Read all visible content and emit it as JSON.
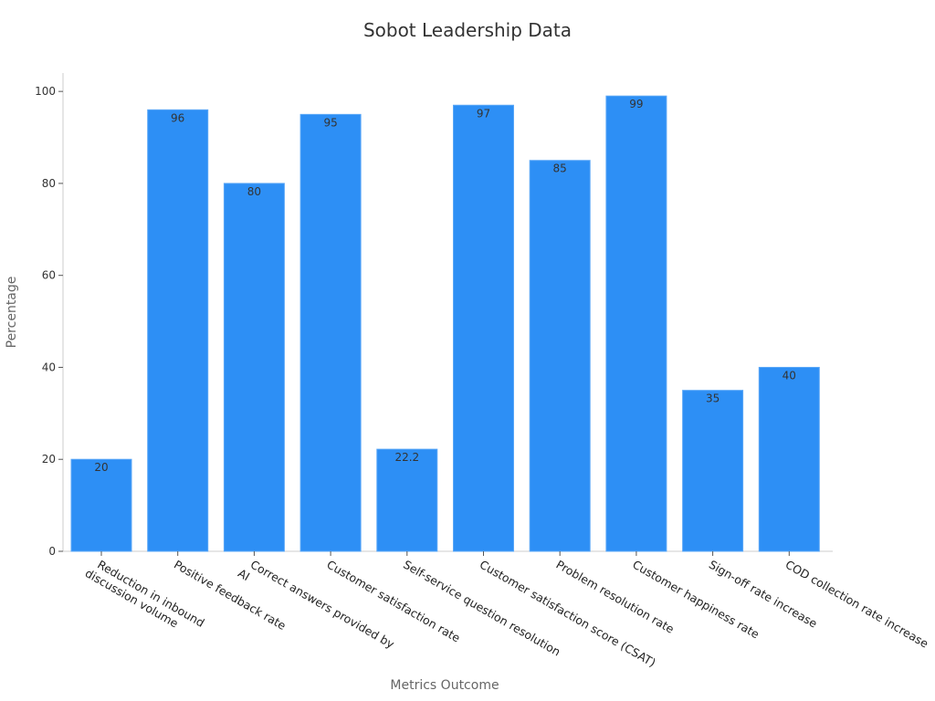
{
  "chart_data": {
    "type": "bar",
    "title": "Sobot Leadership Data",
    "xlabel": "Metrics Outcome",
    "ylabel": "Percentage",
    "ylim": [
      0,
      104
    ],
    "yticks": [
      0,
      20,
      40,
      60,
      80,
      100
    ],
    "grid": false,
    "bar_color": "#2d8ff5",
    "categories": [
      [
        "Reduction in inbound",
        "discussion volume"
      ],
      [
        "Positive feedback rate"
      ],
      [
        "Correct answers provided by",
        "AI"
      ],
      [
        "Customer satisfaction rate"
      ],
      [
        "Self-service question resolution"
      ],
      [
        "Customer satisfaction score (CSAT)"
      ],
      [
        "Problem resolution rate"
      ],
      [
        "Customer happiness rate"
      ],
      [
        "Sign-off rate increase"
      ],
      [
        "COD collection rate increase"
      ]
    ],
    "values": [
      20,
      96,
      80,
      95,
      22.2,
      97,
      85,
      99,
      35,
      40
    ],
    "value_labels": [
      "20",
      "96",
      "80",
      "95",
      "22.2",
      "97",
      "85",
      "99",
      "35",
      "40"
    ]
  }
}
